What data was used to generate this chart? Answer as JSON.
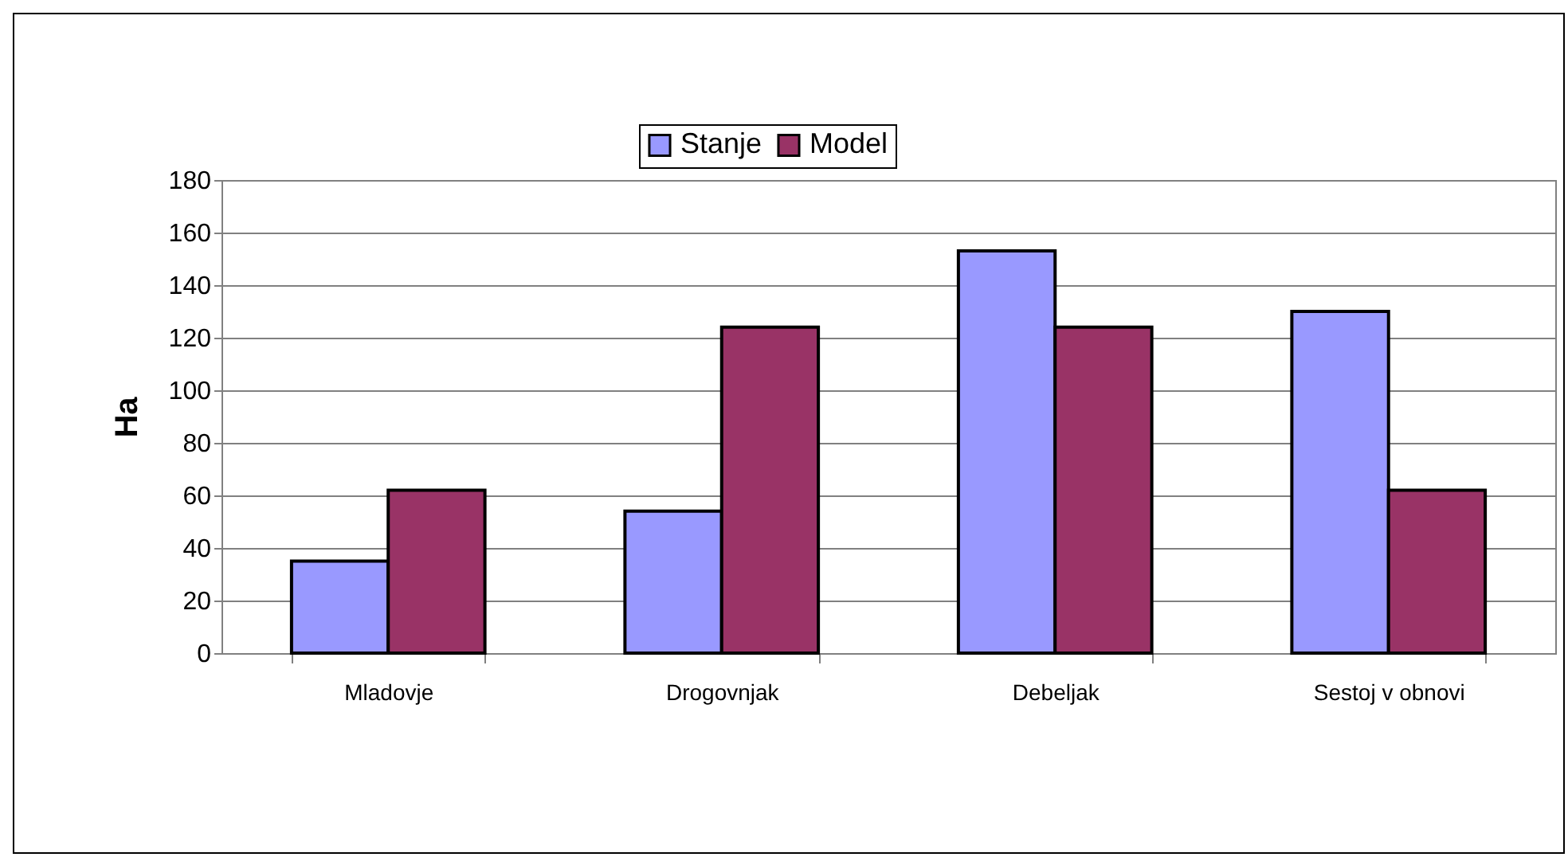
{
  "chart_data": {
    "type": "bar",
    "ylabel": "Ha",
    "categories": [
      "Mladovje",
      "Drogovnjak",
      "Debeljak",
      "Sestoj v obnovi"
    ],
    "series": [
      {
        "name": "Stanje",
        "color": "#9999ff",
        "values": [
          35,
          54,
          153,
          130
        ]
      },
      {
        "name": "Model",
        "color": "#993366",
        "values": [
          62,
          124,
          124,
          62
        ]
      }
    ],
    "ylim": [
      0,
      180
    ],
    "yticks": [
      0,
      20,
      40,
      60,
      80,
      100,
      120,
      140,
      160,
      180
    ],
    "grid": "y",
    "legend": "top"
  }
}
